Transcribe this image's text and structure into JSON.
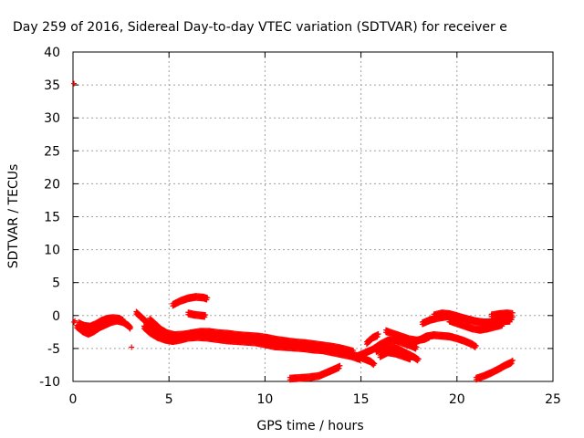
{
  "chart_data": {
    "type": "scatter",
    "title": "Day 259 of 2016, Sidereal Day-to-day VTEC variation (SDTVAR) for receiver e",
    "xlabel": "GPS time / hours",
    "ylabel": "SDTVAR / TECUs",
    "xlim": [
      0,
      25
    ],
    "ylim": [
      -10,
      40
    ],
    "xticks": [
      0,
      5,
      10,
      15,
      20,
      25
    ],
    "yticks": [
      -10,
      -5,
      0,
      5,
      10,
      15,
      20,
      25,
      30,
      35,
      40
    ],
    "grid": true,
    "legend": "none",
    "marker": "plus",
    "color": "#ff0000",
    "series": [
      {
        "segments": [
          [
            [
              0.2,
              -1.5
            ],
            [
              0.5,
              -2.2
            ],
            [
              0.8,
              -2.6
            ],
            [
              1.1,
              -2.2
            ],
            [
              1.4,
              -1.6
            ],
            [
              1.7,
              -1.2
            ],
            [
              2.0,
              -0.8
            ],
            [
              2.3,
              -0.6
            ],
            [
              2.6,
              -0.8
            ],
            [
              2.9,
              -1.4
            ],
            [
              3.0,
              -1.8
            ]
          ],
          [
            [
              0.3,
              -1.0
            ],
            [
              0.6,
              -1.4
            ],
            [
              0.9,
              -1.5
            ],
            [
              1.2,
              -1.1
            ],
            [
              1.5,
              -0.6
            ],
            [
              1.8,
              -0.3
            ],
            [
              2.1,
              -0.2
            ],
            [
              2.4,
              -0.3
            ],
            [
              2.6,
              -0.6
            ]
          ],
          [
            [
              3.3,
              0.6
            ],
            [
              3.6,
              -0.2
            ],
            [
              3.9,
              -1.0
            ],
            [
              4.2,
              -1.8
            ],
            [
              4.5,
              -2.5
            ],
            [
              4.8,
              -2.9
            ],
            [
              5.2,
              -3.2
            ],
            [
              5.6,
              -3.1
            ],
            [
              6.0,
              -2.9
            ],
            [
              6.5,
              -2.8
            ],
            [
              7.0,
              -2.7
            ],
            [
              7.5,
              -2.8
            ],
            [
              8.0,
              -3.0
            ],
            [
              8.5,
              -3.2
            ],
            [
              9.0,
              -3.3
            ],
            [
              9.5,
              -3.4
            ],
            [
              10.0,
              -3.6
            ],
            [
              10.5,
              -3.9
            ],
            [
              11.0,
              -4.1
            ],
            [
              11.5,
              -4.3
            ],
            [
              12.0,
              -4.4
            ],
            [
              12.5,
              -4.6
            ],
            [
              13.0,
              -4.8
            ],
            [
              13.5,
              -5.0
            ],
            [
              14.0,
              -5.3
            ],
            [
              14.5,
              -5.7
            ],
            [
              15.0,
              -6.2
            ],
            [
              15.5,
              -6.8
            ],
            [
              15.7,
              -7.3
            ]
          ],
          [
            [
              3.7,
              -1.6
            ],
            [
              4.0,
              -2.4
            ],
            [
              4.4,
              -3.1
            ],
            [
              4.8,
              -3.5
            ],
            [
              5.2,
              -3.7
            ],
            [
              5.6,
              -3.5
            ],
            [
              6.0,
              -3.2
            ],
            [
              6.5,
              -3.1
            ],
            [
              7.0,
              -3.2
            ],
            [
              7.5,
              -3.4
            ],
            [
              8.0,
              -3.6
            ],
            [
              8.5,
              -3.7
            ],
            [
              9.0,
              -3.8
            ],
            [
              9.5,
              -3.9
            ],
            [
              10.0,
              -4.2
            ],
            [
              10.5,
              -4.5
            ],
            [
              11.0,
              -4.6
            ],
            [
              11.5,
              -4.7
            ],
            [
              12.0,
              -4.8
            ],
            [
              12.5,
              -5.0
            ],
            [
              13.0,
              -5.1
            ],
            [
              13.5,
              -5.4
            ],
            [
              14.0,
              -5.7
            ],
            [
              14.5,
              -6.0
            ],
            [
              15.0,
              -6.5
            ]
          ],
          [
            [
              4.0,
              -0.4
            ],
            [
              4.3,
              -1.2
            ],
            [
              4.6,
              -2.0
            ],
            [
              4.9,
              -2.5
            ],
            [
              5.3,
              -2.8
            ],
            [
              5.8,
              -2.7
            ],
            [
              6.2,
              -2.5
            ],
            [
              6.6,
              -2.3
            ],
            [
              7.1,
              -2.3
            ],
            [
              7.6,
              -2.5
            ],
            [
              8.1,
              -2.6
            ],
            [
              8.6,
              -2.8
            ],
            [
              9.1,
              -2.9
            ],
            [
              9.6,
              -3.0
            ],
            [
              10.1,
              -3.2
            ],
            [
              10.6,
              -3.5
            ],
            [
              11.1,
              -3.7
            ],
            [
              11.6,
              -3.9
            ],
            [
              12.1,
              -4.0
            ],
            [
              12.6,
              -4.2
            ],
            [
              13.1,
              -4.4
            ],
            [
              13.6,
              -4.6
            ],
            [
              14.1,
              -4.9
            ],
            [
              14.6,
              -5.3
            ]
          ],
          [
            [
              5.2,
              1.8
            ],
            [
              5.6,
              2.4
            ],
            [
              6.0,
              2.8
            ],
            [
              6.4,
              3.0
            ],
            [
              6.8,
              2.9
            ],
            [
              7.0,
              2.7
            ]
          ],
          [
            [
              6.0,
              0.5
            ],
            [
              6.3,
              0.3
            ],
            [
              6.6,
              0.2
            ],
            [
              6.9,
              0.1
            ]
          ],
          [
            [
              11.3,
              -9.4
            ],
            [
              11.8,
              -9.3
            ],
            [
              12.3,
              -9.2
            ],
            [
              12.8,
              -9.0
            ],
            [
              13.2,
              -8.5
            ],
            [
              13.6,
              -8.0
            ],
            [
              13.9,
              -7.6
            ]
          ],
          [
            [
              15.3,
              -4.0
            ],
            [
              15.6,
              -3.2
            ],
            [
              15.9,
              -2.8
            ]
          ],
          [
            [
              14.8,
              -6.0
            ],
            [
              15.2,
              -5.5
            ],
            [
              15.6,
              -5.0
            ],
            [
              16.0,
              -4.2
            ],
            [
              16.4,
              -3.6
            ],
            [
              16.8,
              -3.6
            ],
            [
              17.2,
              -4.0
            ],
            [
              17.6,
              -4.4
            ],
            [
              17.9,
              -4.8
            ]
          ],
          [
            [
              15.8,
              -5.2
            ],
            [
              16.2,
              -4.7
            ],
            [
              16.6,
              -4.6
            ],
            [
              17.0,
              -5.0
            ],
            [
              17.4,
              -5.6
            ],
            [
              17.8,
              -6.2
            ],
            [
              18.0,
              -6.6
            ]
          ],
          [
            [
              16.3,
              -2.2
            ],
            [
              16.7,
              -2.6
            ],
            [
              17.1,
              -3.0
            ],
            [
              17.5,
              -3.4
            ],
            [
              17.9,
              -3.6
            ],
            [
              18.3,
              -3.4
            ],
            [
              18.6,
              -3.0
            ]
          ],
          [
            [
              16.0,
              -6.0
            ],
            [
              16.4,
              -5.4
            ],
            [
              16.8,
              -5.6
            ],
            [
              17.2,
              -6.0
            ],
            [
              17.6,
              -6.4
            ]
          ],
          [
            [
              17.6,
              -4.0
            ],
            [
              18.0,
              -3.6
            ],
            [
              18.4,
              -3.0
            ],
            [
              18.8,
              -2.8
            ],
            [
              19.2,
              -2.9
            ],
            [
              19.6,
              -3.0
            ],
            [
              20.0,
              -3.3
            ],
            [
              20.4,
              -3.7
            ],
            [
              20.8,
              -4.2
            ],
            [
              21.0,
              -4.6
            ]
          ],
          [
            [
              18.2,
              -1.0
            ],
            [
              18.6,
              -0.5
            ],
            [
              19.0,
              -0.2
            ],
            [
              19.4,
              0.0
            ],
            [
              19.8,
              0.1
            ],
            [
              20.2,
              -0.1
            ],
            [
              20.6,
              -0.4
            ],
            [
              21.0,
              -0.7
            ],
            [
              21.4,
              -0.9
            ],
            [
              21.8,
              -0.8
            ],
            [
              22.2,
              -0.6
            ],
            [
              22.6,
              -0.4
            ],
            [
              22.9,
              -0.2
            ]
          ],
          [
            [
              18.8,
              0.2
            ],
            [
              19.2,
              0.5
            ],
            [
              19.6,
              0.4
            ],
            [
              20.0,
              0.1
            ],
            [
              20.4,
              -0.3
            ],
            [
              20.8,
              -0.6
            ],
            [
              21.2,
              -0.8
            ],
            [
              21.6,
              -0.9
            ],
            [
              22.0,
              -0.8
            ],
            [
              22.4,
              -0.7
            ],
            [
              22.8,
              -0.6
            ]
          ],
          [
            [
              19.6,
              -0.6
            ],
            [
              20.0,
              -1.0
            ],
            [
              20.4,
              -1.4
            ],
            [
              20.8,
              -1.8
            ],
            [
              21.2,
              -2.0
            ],
            [
              21.6,
              -1.8
            ],
            [
              22.0,
              -1.5
            ],
            [
              22.4,
              -1.2
            ]
          ],
          [
            [
              21.8,
              0.2
            ],
            [
              22.2,
              0.4
            ],
            [
              22.6,
              0.5
            ],
            [
              22.9,
              0.4
            ]
          ],
          [
            [
              21.0,
              -9.4
            ],
            [
              21.4,
              -9.0
            ],
            [
              21.8,
              -8.5
            ],
            [
              22.2,
              -7.9
            ],
            [
              22.5,
              -7.4
            ],
            [
              22.8,
              -7.0
            ],
            [
              22.9,
              -6.8
            ]
          ]
        ],
        "isolated": [
          [
            0.05,
            35.2
          ],
          [
            0.05,
            -1.0
          ],
          [
            0.1,
            -0.8
          ],
          [
            3.05,
            -4.8
          ]
        ]
      }
    ]
  }
}
